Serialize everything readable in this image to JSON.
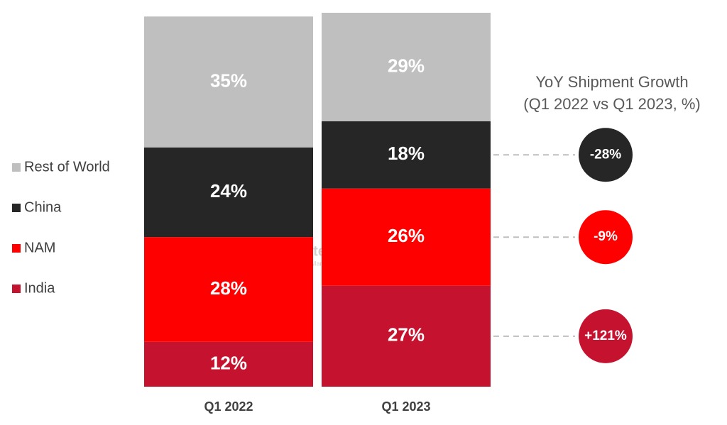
{
  "chart_data": {
    "type": "stacked-bar",
    "categories": [
      "Q1 2022",
      "Q1 2023"
    ],
    "ylim": [
      0,
      100
    ],
    "series": [
      {
        "name": "India",
        "color": "#c4122f",
        "values": [
          12,
          27
        ],
        "value_labels": [
          "12%",
          "27%"
        ],
        "growth": 121,
        "growth_label": "+121%"
      },
      {
        "name": "NAM",
        "color": "#ff0000",
        "values": [
          28,
          26
        ],
        "value_labels": [
          "28%",
          "26%"
        ],
        "growth": -9,
        "growth_label": "-9%"
      },
      {
        "name": "China",
        "color": "#262626",
        "values": [
          24,
          18
        ],
        "value_labels": [
          "24%",
          "18%"
        ],
        "growth": -28,
        "growth_label": "-28%"
      },
      {
        "name": "Rest of World",
        "color": "#bfbfbf",
        "values": [
          35,
          29
        ],
        "value_labels": [
          "35%",
          "29%"
        ]
      }
    ],
    "growth_title": [
      "YoY Shipment Growth",
      "(Q1 2022 vs Q1 2023, %)"
    ],
    "watermark": {
      "name": "Counterpoint",
      "tagline": "Technology Market Research"
    }
  }
}
